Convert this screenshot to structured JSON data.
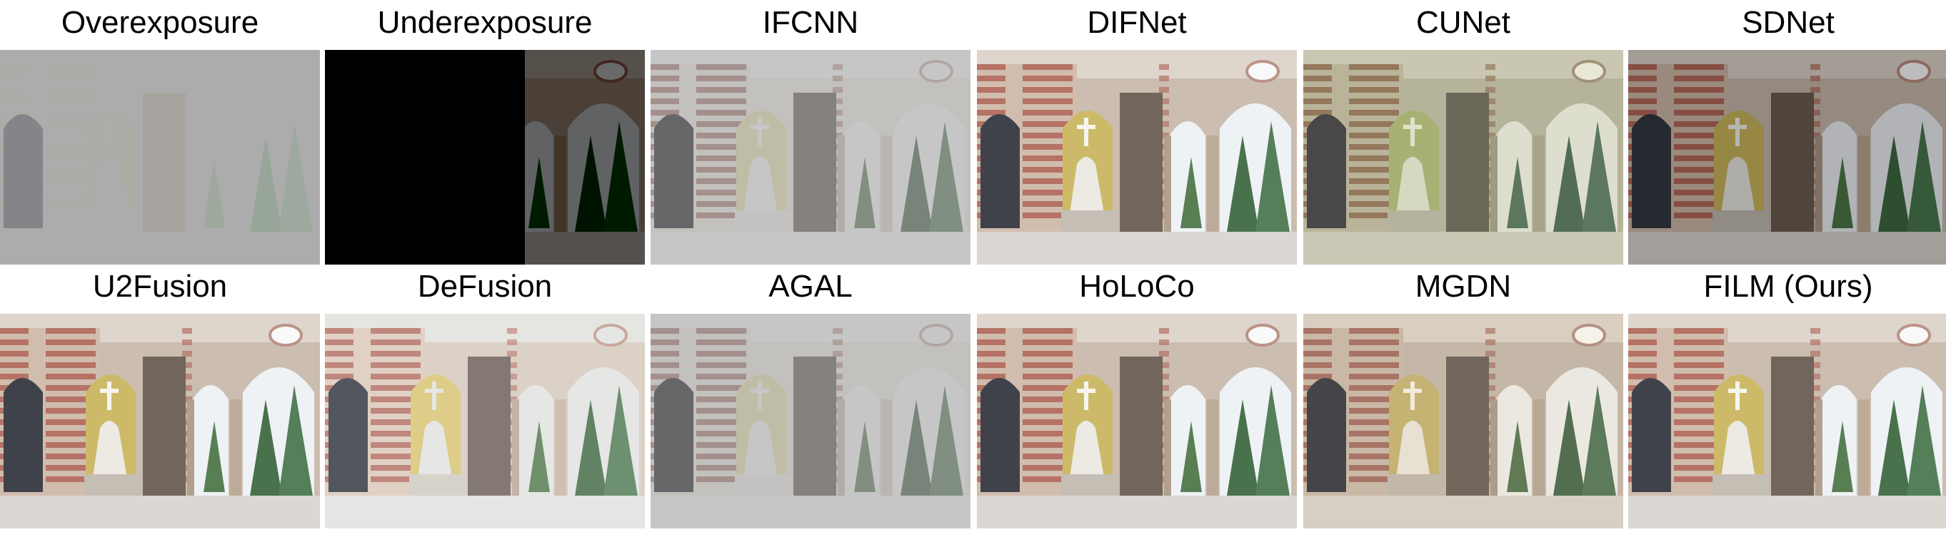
{
  "figure": {
    "row1": [
      {
        "caption": "Overexposure",
        "tone": "over"
      },
      {
        "caption": "Underexposure",
        "tone": "under"
      },
      {
        "caption": "IFCNN",
        "tone": "pale"
      },
      {
        "caption": "DIFNet",
        "tone": "normal"
      },
      {
        "caption": "CUNet",
        "tone": "tinted"
      },
      {
        "caption": "SDNet",
        "tone": "dark"
      }
    ],
    "row2": [
      {
        "caption": "U2Fusion",
        "tone": "normal"
      },
      {
        "caption": "DeFusion",
        "tone": "bright"
      },
      {
        "caption": "AGAL",
        "tone": "pale"
      },
      {
        "caption": "HoLoCo",
        "tone": "normal"
      },
      {
        "caption": "MGDN",
        "tone": "warm"
      },
      {
        "caption": "FILM (Ours)",
        "tone": "normal"
      }
    ]
  }
}
